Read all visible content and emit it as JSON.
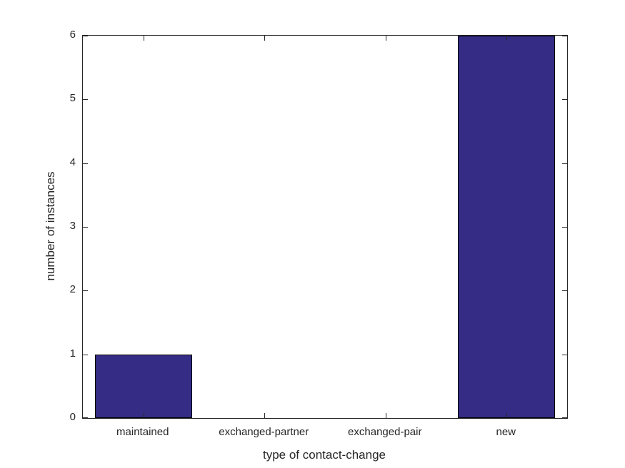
{
  "chart_data": {
    "type": "bar",
    "categories": [
      "maintained",
      "exchanged-partner",
      "exchanged-pair",
      "new"
    ],
    "values": [
      1,
      0,
      0,
      6
    ],
    "title": "",
    "xlabel": "type of contact-change",
    "ylabel": "number of instances",
    "ylim": [
      0,
      6
    ],
    "yticks": [
      0,
      1,
      2,
      3,
      4,
      5,
      6
    ],
    "ytick_labels": [
      "0",
      "1",
      "2",
      "3",
      "4",
      "5",
      "6"
    ],
    "bar_width_fraction": 0.8,
    "grid": "off",
    "legend": "none",
    "colors": {
      "bar_fill": "#342C85",
      "bar_edge": "#000000",
      "axis": "#262626",
      "text": "#262626",
      "background": "#ffffff"
    }
  }
}
